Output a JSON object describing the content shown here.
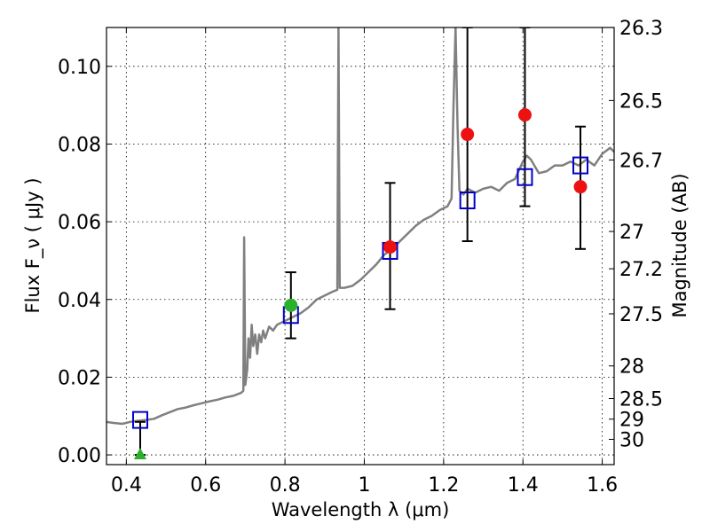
{
  "chart_data": {
    "type": "scatter",
    "xlabel": "Wavelength  λ (μm)",
    "ylabel": "Flux  F_ν  ( μJy )",
    "ylabel_right": "Magnitude (AB)",
    "xlim": [
      0.35,
      1.63
    ],
    "ylim": [
      -0.0025,
      0.11
    ],
    "x_ticks": [
      {
        "value": 0.4,
        "label": "0.4"
      },
      {
        "value": 0.6,
        "label": "0.6"
      },
      {
        "value": 0.8,
        "label": "0.8"
      },
      {
        "value": 1.0,
        "label": "1"
      },
      {
        "value": 1.2,
        "label": "1.2"
      },
      {
        "value": 1.4,
        "label": "1.4"
      },
      {
        "value": 1.6,
        "label": "1.6"
      }
    ],
    "y_ticks": [
      {
        "value": 0.0,
        "label": "0.00"
      },
      {
        "value": 0.02,
        "label": "0.02"
      },
      {
        "value": 0.04,
        "label": "0.04"
      },
      {
        "value": 0.06,
        "label": "0.06"
      },
      {
        "value": 0.08,
        "label": "0.08"
      },
      {
        "value": 0.1,
        "label": "0.10"
      }
    ],
    "right_ticks": [
      {
        "flux": 0.11,
        "label": "26.3"
      },
      {
        "flux": 0.0912,
        "label": "26.5"
      },
      {
        "flux": 0.0759,
        "label": "26.7"
      },
      {
        "flux": 0.0575,
        "label": "27"
      },
      {
        "flux": 0.0479,
        "label": "27.2"
      },
      {
        "flux": 0.0363,
        "label": "27.5"
      },
      {
        "flux": 0.0229,
        "label": "28"
      },
      {
        "flux": 0.0145,
        "label": "28.5"
      },
      {
        "flux": 0.0092,
        "label": "29"
      },
      {
        "flux": 0.004,
        "label": "30"
      }
    ],
    "grid": true,
    "model_color": "#808080",
    "model_spectrum": [
      [
        0.35,
        0.0085
      ],
      [
        0.37,
        0.0082
      ],
      [
        0.39,
        0.008
      ],
      [
        0.41,
        0.0085
      ],
      [
        0.43,
        0.0088
      ],
      [
        0.45,
        0.009
      ],
      [
        0.47,
        0.0093
      ],
      [
        0.49,
        0.0102
      ],
      [
        0.51,
        0.011
      ],
      [
        0.53,
        0.0118
      ],
      [
        0.55,
        0.0122
      ],
      [
        0.57,
        0.0128
      ],
      [
        0.59,
        0.0133
      ],
      [
        0.61,
        0.0138
      ],
      [
        0.63,
        0.0142
      ],
      [
        0.65,
        0.0148
      ],
      [
        0.67,
        0.0152
      ],
      [
        0.69,
        0.016
      ],
      [
        0.695,
        0.0165
      ],
      [
        0.697,
        0.056
      ],
      [
        0.7,
        0.018
      ],
      [
        0.705,
        0.022
      ],
      [
        0.708,
        0.03
      ],
      [
        0.712,
        0.025
      ],
      [
        0.716,
        0.0335
      ],
      [
        0.72,
        0.028
      ],
      [
        0.725,
        0.031
      ],
      [
        0.73,
        0.026
      ],
      [
        0.735,
        0.031
      ],
      [
        0.74,
        0.029
      ],
      [
        0.745,
        0.032
      ],
      [
        0.75,
        0.03
      ],
      [
        0.76,
        0.033
      ],
      [
        0.77,
        0.032
      ],
      [
        0.78,
        0.0335
      ],
      [
        0.8,
        0.0345
      ],
      [
        0.82,
        0.0355
      ],
      [
        0.84,
        0.0365
      ],
      [
        0.86,
        0.038
      ],
      [
        0.88,
        0.04
      ],
      [
        0.9,
        0.041
      ],
      [
        0.92,
        0.042
      ],
      [
        0.932,
        0.0425
      ],
      [
        0.935,
        0.11
      ],
      [
        0.938,
        0.043
      ],
      [
        0.95,
        0.043
      ],
      [
        0.97,
        0.0435
      ],
      [
        0.99,
        0.045
      ],
      [
        1.01,
        0.047
      ],
      [
        1.03,
        0.049
      ],
      [
        1.05,
        0.0515
      ],
      [
        1.07,
        0.053
      ],
      [
        1.09,
        0.055
      ],
      [
        1.11,
        0.057
      ],
      [
        1.13,
        0.059
      ],
      [
        1.15,
        0.0605
      ],
      [
        1.17,
        0.0615
      ],
      [
        1.19,
        0.063
      ],
      [
        1.21,
        0.064
      ],
      [
        1.22,
        0.066
      ],
      [
        1.225,
        0.09
      ],
      [
        1.23,
        0.11
      ],
      [
        1.235,
        0.085
      ],
      [
        1.24,
        0.068
      ],
      [
        1.25,
        0.067
      ],
      [
        1.26,
        0.0685
      ],
      [
        1.28,
        0.0675
      ],
      [
        1.3,
        0.0685
      ],
      [
        1.32,
        0.069
      ],
      [
        1.34,
        0.068
      ],
      [
        1.36,
        0.07
      ],
      [
        1.38,
        0.071
      ],
      [
        1.4,
        0.0755
      ],
      [
        1.41,
        0.077
      ],
      [
        1.42,
        0.076
      ],
      [
        1.44,
        0.0725
      ],
      [
        1.46,
        0.073
      ],
      [
        1.48,
        0.0745
      ],
      [
        1.5,
        0.0745
      ],
      [
        1.52,
        0.0755
      ],
      [
        1.54,
        0.0745
      ],
      [
        1.56,
        0.076
      ],
      [
        1.58,
        0.0745
      ],
      [
        1.6,
        0.0775
      ],
      [
        1.62,
        0.079
      ],
      [
        1.63,
        0.078
      ]
    ],
    "model_squares": [
      {
        "x": 0.435,
        "y": 0.009
      },
      {
        "x": 0.815,
        "y": 0.036
      },
      {
        "x": 1.065,
        "y": 0.0525
      },
      {
        "x": 1.26,
        "y": 0.0655
      },
      {
        "x": 1.405,
        "y": 0.0715
      },
      {
        "x": 1.545,
        "y": 0.0745
      }
    ],
    "observed_points": [
      {
        "x": 0.435,
        "y": 0.0,
        "yerr_low": 0.0,
        "yerr_high": 0.0085,
        "color": "#2ab02a",
        "marker": "triangle"
      },
      {
        "x": 0.815,
        "y": 0.0385,
        "yerr_low": 0.03,
        "yerr_high": 0.047,
        "color": "#2ab02a",
        "marker": "circle"
      },
      {
        "x": 1.065,
        "y": 0.0535,
        "yerr_low": 0.0375,
        "yerr_high": 0.07,
        "color": "#ee1111",
        "marker": "circle"
      },
      {
        "x": 1.26,
        "y": 0.0825,
        "yerr_low": 0.055,
        "yerr_high": 0.11,
        "color": "#ee1111",
        "marker": "circle"
      },
      {
        "x": 1.405,
        "y": 0.0875,
        "yerr_low": 0.064,
        "yerr_high": 0.11,
        "color": "#ee1111",
        "marker": "circle"
      },
      {
        "x": 1.545,
        "y": 0.069,
        "yerr_low": 0.053,
        "yerr_high": 0.0845,
        "color": "#ee1111",
        "marker": "circle"
      }
    ],
    "square_color": "#0000cc"
  }
}
